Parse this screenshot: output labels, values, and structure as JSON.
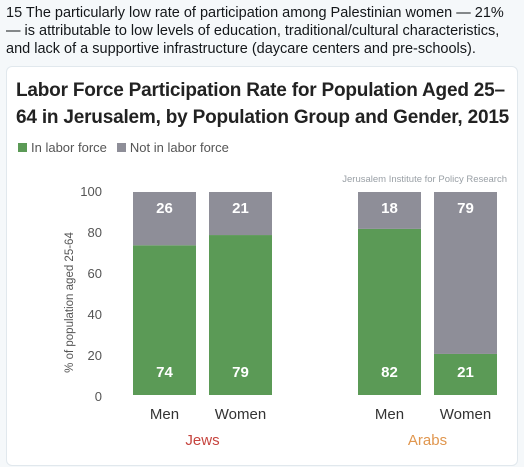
{
  "tweet": {
    "text": "15 The particularly low rate of participation among Palestinian women — 21% — is attributable to low levels of education, traditional/cultural characteristics, and lack of a supportive infrastructure (daycare centers and pre-schools)."
  },
  "colors": {
    "in_labor_force": "#5b9a56",
    "not_in_labor_force": "#8e8e98",
    "jews": "#c6443e",
    "arabs": "#e0964e"
  },
  "chart_data": {
    "type": "bar",
    "stacked": true,
    "title": "Labor Force Participation Rate for Population Aged 25–64 in Jerusalem, by Population Group and Gender, 2015",
    "source": "Jerusalem Institute for Policy Research",
    "ylabel": "% of population aged 25-64",
    "ylim": [
      0,
      100
    ],
    "yticks": [
      0,
      20,
      40,
      60,
      80,
      100
    ],
    "grid": false,
    "legend_position": "top-left",
    "groups": [
      "Jews",
      "Arabs"
    ],
    "categories": [
      "Men",
      "Women",
      "Men",
      "Women"
    ],
    "category_group": [
      "Jews",
      "Jews",
      "Arabs",
      "Arabs"
    ],
    "series": [
      {
        "name": "In labor force",
        "values": [
          74,
          79,
          82,
          21
        ]
      },
      {
        "name": "Not in labor force",
        "values": [
          26,
          21,
          18,
          79
        ]
      }
    ]
  }
}
